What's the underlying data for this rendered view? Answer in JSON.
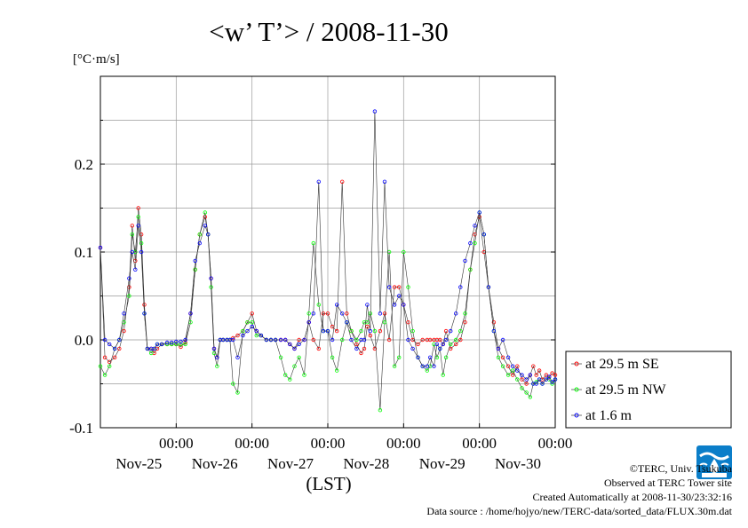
{
  "chart_data": {
    "type": "line",
    "title": "<w’ T’> / 2008-11-30",
    "ylabel": "[°C·m/s]",
    "xlabel": "(LST)",
    "ylim": [
      -0.1,
      0.3
    ],
    "xlim": [
      24.0,
      30.0
    ],
    "y_ticks": [
      {
        "value": 0.2,
        "label": "0.2"
      },
      {
        "value": 0.1,
        "label": "0.1"
      },
      {
        "value": 0.0,
        "label": "0.0"
      },
      {
        "value": -0.1,
        "label": "-0.1"
      }
    ],
    "x_ticks": [
      {
        "value": 25,
        "time": "00:00",
        "date": "Nov-25"
      },
      {
        "value": 26,
        "time": "00:00",
        "date": "Nov-26"
      },
      {
        "value": 27,
        "time": "00:00",
        "date": "Nov-27"
      },
      {
        "value": 28,
        "time": "00:00",
        "date": "Nov-28"
      },
      {
        "value": 29,
        "time": "00:00",
        "date": "Nov-29"
      },
      {
        "value": 30,
        "time": "00:00",
        "date": "Nov-30"
      }
    ],
    "grid": true,
    "legend_position": "right-bottom, outside plot",
    "series": [
      {
        "name": "at 29.5 m SE",
        "color": "#ff0000",
        "x": [
          24.0,
          24.06,
          24.12,
          24.19,
          24.25,
          24.31,
          24.38,
          24.42,
          24.46,
          24.5,
          24.54,
          24.58,
          24.62,
          24.67,
          24.71,
          24.75,
          24.81,
          24.88,
          24.94,
          25.0,
          25.06,
          25.12,
          25.19,
          25.25,
          25.31,
          25.38,
          25.42,
          25.46,
          25.5,
          25.54,
          25.58,
          25.62,
          25.67,
          25.71,
          25.75,
          25.81,
          25.88,
          25.94,
          26.0,
          26.06,
          26.12,
          26.19,
          26.25,
          26.31,
          26.38,
          26.44,
          26.5,
          26.56,
          26.62,
          26.69,
          26.75,
          26.81,
          26.88,
          26.94,
          27.0,
          27.06,
          27.12,
          27.19,
          27.25,
          27.31,
          27.38,
          27.44,
          27.48,
          27.52,
          27.56,
          27.62,
          27.69,
          27.75,
          27.81,
          27.88,
          27.94,
          28.0,
          28.06,
          28.12,
          28.19,
          28.25,
          28.31,
          28.35,
          28.4,
          28.44,
          28.48,
          28.52,
          28.56,
          28.62,
          28.69,
          28.75,
          28.81,
          28.88,
          28.94,
          29.0,
          29.06,
          29.12,
          29.19,
          29.25,
          29.31,
          29.38,
          29.44,
          29.5,
          29.56,
          29.62,
          29.67,
          29.71,
          29.75,
          29.79,
          29.83,
          29.88,
          29.92,
          29.96,
          30.0
        ],
        "y": [
          0.105,
          -0.02,
          -0.025,
          -0.02,
          -0.01,
          0.01,
          0.06,
          0.13,
          0.09,
          0.15,
          0.12,
          0.04,
          -0.01,
          -0.01,
          -0.015,
          -0.01,
          -0.005,
          -0.005,
          -0.005,
          -0.005,
          -0.008,
          -0.003,
          0.03,
          0.08,
          0.12,
          0.14,
          0.12,
          0.07,
          -0.01,
          -0.02,
          0.0,
          0.0,
          0.0,
          0.0,
          0.002,
          0.005,
          0.01,
          0.02,
          0.03,
          0.01,
          0.005,
          0.0,
          0.0,
          0.0,
          0.0,
          0.0,
          -0.005,
          -0.01,
          0.0,
          0.0,
          0.02,
          0.0,
          -0.01,
          0.03,
          0.03,
          0.015,
          0.01,
          0.18,
          0.03,
          0.01,
          -0.005,
          -0.015,
          -0.01,
          0.015,
          0.005,
          -0.01,
          0.01,
          0.03,
          0.0,
          0.06,
          0.06,
          0.04,
          0.02,
          0.0,
          -0.005,
          0.0,
          0.0,
          0.0,
          0.0,
          0.0,
          0.0,
          -0.005,
          0.01,
          -0.01,
          -0.005,
          0.0,
          0.02,
          0.08,
          0.12,
          0.14,
          0.1,
          0.06,
          0.02,
          -0.01,
          -0.02,
          -0.03,
          -0.04,
          -0.03,
          -0.045,
          -0.05,
          -0.04,
          -0.03,
          -0.04,
          -0.035,
          -0.045,
          -0.04,
          -0.042,
          -0.038,
          -0.04
        ]
      },
      {
        "name": "at 29.5 m NW",
        "color": "#00ff00",
        "x": [
          24.0,
          24.06,
          24.12,
          24.19,
          24.25,
          24.31,
          24.38,
          24.42,
          24.46,
          24.5,
          24.54,
          24.58,
          24.62,
          24.67,
          24.71,
          24.75,
          24.81,
          24.88,
          24.94,
          25.0,
          25.06,
          25.12,
          25.19,
          25.25,
          25.31,
          25.38,
          25.42,
          25.46,
          25.5,
          25.54,
          25.58,
          25.62,
          25.67,
          25.71,
          25.75,
          25.81,
          25.88,
          25.94,
          26.0,
          26.06,
          26.12,
          26.19,
          26.25,
          26.31,
          26.38,
          26.44,
          26.5,
          26.56,
          26.62,
          26.69,
          26.75,
          26.81,
          26.88,
          26.94,
          27.0,
          27.06,
          27.12,
          27.19,
          27.25,
          27.31,
          27.38,
          27.44,
          27.48,
          27.52,
          27.56,
          27.62,
          27.69,
          27.75,
          27.81,
          27.88,
          27.94,
          28.0,
          28.06,
          28.12,
          28.19,
          28.25,
          28.31,
          28.35,
          28.4,
          28.44,
          28.48,
          28.52,
          28.56,
          28.62,
          28.69,
          28.75,
          28.81,
          28.88,
          28.94,
          29.0,
          29.06,
          29.12,
          29.19,
          29.25,
          29.31,
          29.38,
          29.44,
          29.5,
          29.56,
          29.62,
          29.67,
          29.71,
          29.75,
          29.79,
          29.83,
          29.88,
          29.92,
          29.96,
          30.0
        ],
        "y": [
          -0.03,
          -0.04,
          -0.03,
          -0.01,
          0.0,
          0.02,
          0.05,
          0.12,
          0.1,
          0.14,
          0.11,
          0.03,
          -0.01,
          -0.015,
          -0.01,
          -0.005,
          -0.005,
          -0.005,
          -0.005,
          -0.005,
          -0.005,
          -0.005,
          0.02,
          0.08,
          0.12,
          0.145,
          0.12,
          0.06,
          -0.015,
          -0.03,
          0.0,
          0.0,
          0.0,
          0.0,
          -0.05,
          -0.06,
          0.01,
          0.02,
          0.02,
          0.005,
          0.005,
          0.0,
          0.0,
          0.0,
          -0.02,
          -0.04,
          -0.045,
          -0.03,
          -0.02,
          -0.04,
          0.03,
          0.11,
          0.04,
          0.01,
          0.01,
          -0.02,
          -0.035,
          0.0,
          0.02,
          0.01,
          0.0,
          0.01,
          0.02,
          0.02,
          0.03,
          0.01,
          -0.08,
          0.02,
          0.1,
          -0.03,
          -0.02,
          0.1,
          0.06,
          0.01,
          -0.02,
          -0.03,
          -0.035,
          -0.03,
          -0.005,
          -0.02,
          -0.01,
          -0.04,
          -0.02,
          -0.005,
          0.0,
          0.01,
          0.03,
          0.08,
          0.11,
          0.145,
          0.12,
          0.06,
          0.01,
          -0.02,
          -0.03,
          -0.04,
          -0.035,
          -0.045,
          -0.055,
          -0.06,
          -0.065,
          -0.05,
          -0.048,
          -0.045,
          -0.05,
          -0.045,
          -0.045,
          -0.05,
          -0.045
        ]
      },
      {
        "name": "at 1.6 m",
        "color": "#0000ff",
        "x": [
          24.0,
          24.06,
          24.12,
          24.19,
          24.25,
          24.31,
          24.38,
          24.42,
          24.46,
          24.5,
          24.54,
          24.58,
          24.62,
          24.67,
          24.71,
          24.75,
          24.81,
          24.88,
          24.94,
          25.0,
          25.06,
          25.12,
          25.19,
          25.25,
          25.31,
          25.38,
          25.42,
          25.46,
          25.5,
          25.54,
          25.58,
          25.62,
          25.67,
          25.71,
          25.75,
          25.81,
          25.88,
          25.94,
          26.0,
          26.06,
          26.12,
          26.19,
          26.25,
          26.31,
          26.38,
          26.44,
          26.5,
          26.56,
          26.62,
          26.69,
          26.75,
          26.81,
          26.88,
          26.94,
          27.0,
          27.06,
          27.12,
          27.19,
          27.25,
          27.31,
          27.38,
          27.44,
          27.48,
          27.52,
          27.56,
          27.62,
          27.69,
          27.75,
          27.81,
          27.88,
          27.94,
          28.0,
          28.06,
          28.12,
          28.19,
          28.25,
          28.31,
          28.35,
          28.4,
          28.44,
          28.48,
          28.52,
          28.56,
          28.62,
          28.69,
          28.75,
          28.81,
          28.88,
          28.94,
          29.0,
          29.06,
          29.12,
          29.19,
          29.25,
          29.31,
          29.38,
          29.44,
          29.5,
          29.56,
          29.62,
          29.67,
          29.71,
          29.75,
          29.79,
          29.83,
          29.88,
          29.92,
          29.96,
          30.0
        ],
        "y": [
          0.105,
          0.0,
          -0.005,
          -0.01,
          0.0,
          0.03,
          0.07,
          0.1,
          0.08,
          0.13,
          0.1,
          0.03,
          -0.01,
          -0.01,
          -0.01,
          -0.005,
          -0.005,
          -0.003,
          -0.003,
          -0.002,
          -0.002,
          0.0,
          0.03,
          0.09,
          0.11,
          0.13,
          0.12,
          0.07,
          -0.01,
          -0.02,
          0.0,
          0.0,
          0.0,
          0.0,
          0.0,
          -0.02,
          0.005,
          0.01,
          0.015,
          0.01,
          0.005,
          0.0,
          0.0,
          0.0,
          0.0,
          0.0,
          -0.005,
          -0.01,
          -0.005,
          0.0,
          0.02,
          0.03,
          0.18,
          0.01,
          0.01,
          0.0,
          0.04,
          0.03,
          0.02,
          0.0,
          -0.01,
          0.0,
          0.0,
          0.04,
          0.01,
          0.26,
          0.03,
          0.18,
          0.06,
          0.04,
          0.05,
          0.04,
          0.0,
          -0.01,
          -0.02,
          -0.03,
          -0.03,
          -0.02,
          -0.03,
          -0.005,
          -0.01,
          -0.005,
          0.0,
          0.01,
          0.03,
          0.06,
          0.09,
          0.11,
          0.13,
          0.145,
          0.12,
          0.06,
          0.01,
          -0.01,
          0.0,
          -0.02,
          -0.03,
          -0.035,
          -0.04,
          -0.045,
          -0.04,
          -0.05,
          -0.05,
          -0.045,
          -0.05,
          -0.045,
          -0.042,
          -0.048,
          -0.045
        ]
      }
    ]
  },
  "footer": {
    "copyright": "©TERC, Univ. Tsukuba",
    "observed": "Observed at TERC Tower site",
    "created": "Created Automatically at 2008-11-30/23:32:16",
    "source": "Data source : /home/hojyo/new/TERC-data/sorted_data/FLUX.30m.dat"
  },
  "logo": {
    "text": "TERC",
    "icon": "terc-logo-icon",
    "color": "#0b7ec9"
  }
}
